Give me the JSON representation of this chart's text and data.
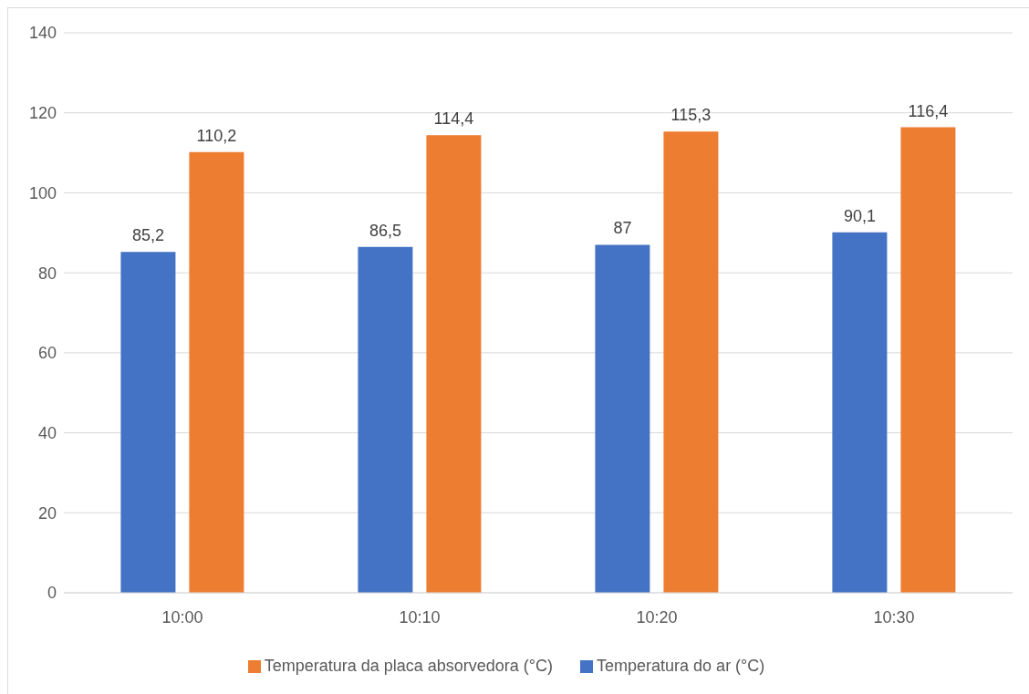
{
  "chart_data": {
    "type": "bar",
    "categories": [
      "10:00",
      "10:10",
      "10:20",
      "10:30"
    ],
    "series": [
      {
        "name": "Temperatura do ar (°C)",
        "color": "#4472c4",
        "values": [
          85.2,
          86.5,
          87,
          90.1
        ],
        "value_labels": [
          "85,2",
          "86,5",
          "87",
          "90,1"
        ]
      },
      {
        "name": "Temperatura da placa absorvedora (°C)",
        "color": "#ed7d31",
        "values": [
          110.2,
          114.4,
          115.3,
          116.4
        ],
        "value_labels": [
          "110,2",
          "114,4",
          "115,3",
          "116,4"
        ]
      }
    ],
    "ylim": [
      0,
      140
    ],
    "yticks": [
      0,
      20,
      40,
      60,
      80,
      100,
      120,
      140
    ],
    "grid": "y",
    "legend": "bottom"
  }
}
